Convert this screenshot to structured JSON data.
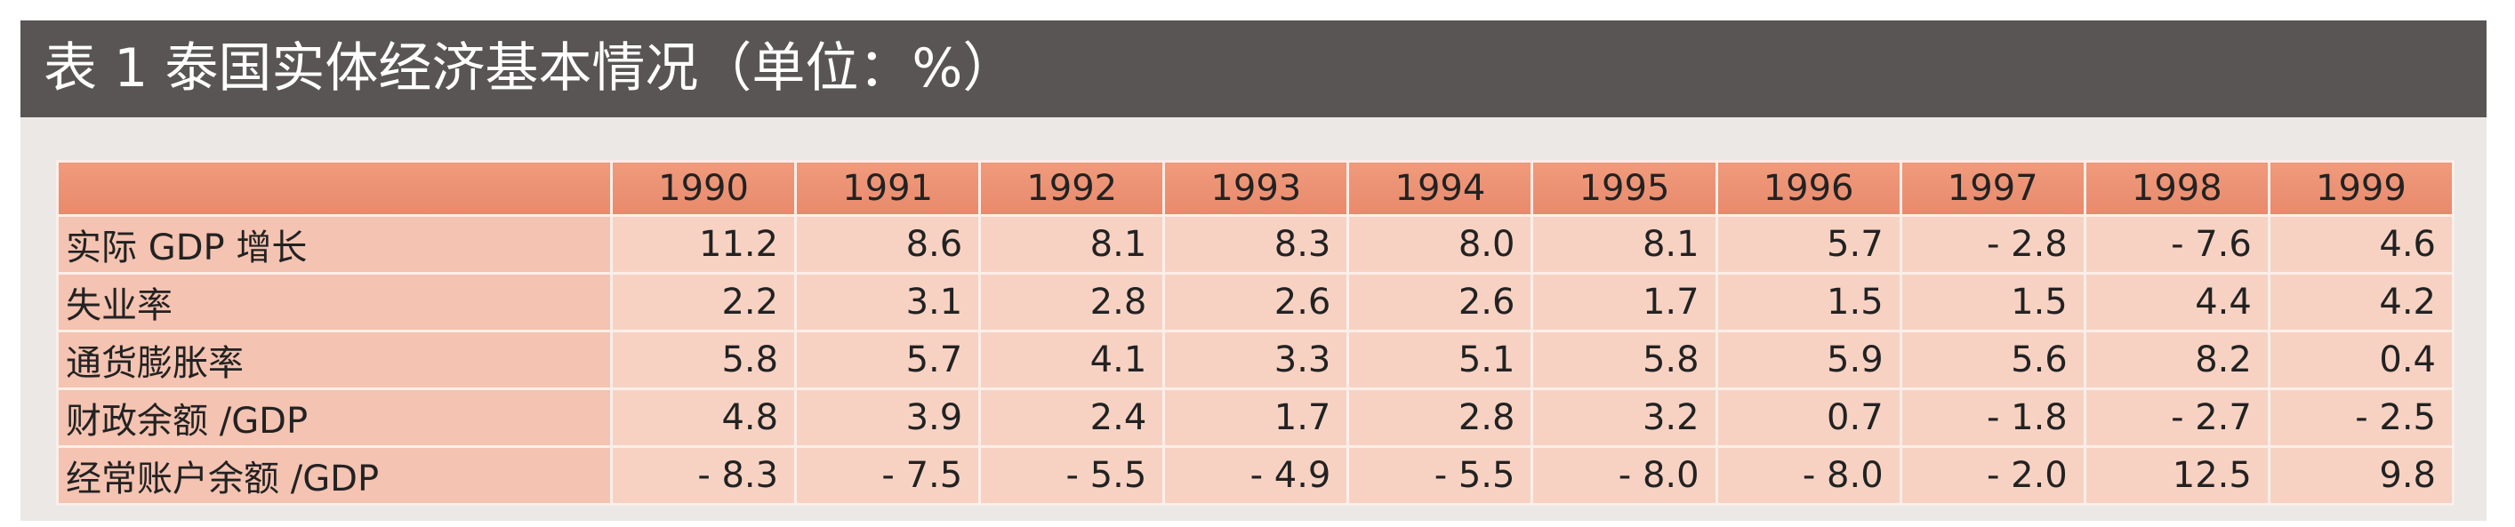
{
  "title": "表 1 泰国实体经济基本情况（单位：%）",
  "table": {
    "columns": [
      "1990",
      "1991",
      "1992",
      "1993",
      "1994",
      "1995",
      "1996",
      "1997",
      "1998",
      "1999"
    ],
    "rows": [
      {
        "label": "实际 GDP 增长",
        "values": [
          "11.2",
          "8.6",
          "8.1",
          "8.3",
          "8.0",
          "8.1",
          "5.7",
          "- 2.8",
          "- 7.6",
          "4.6"
        ]
      },
      {
        "label": "失业率",
        "values": [
          "2.2",
          "3.1",
          "2.8",
          "2.6",
          "2.6",
          "1.7",
          "1.5",
          "1.5",
          "4.4",
          "4.2"
        ]
      },
      {
        "label": "通货膨胀率",
        "values": [
          "5.8",
          "5.7",
          "4.1",
          "3.3",
          "5.1",
          "5.8",
          "5.9",
          "5.6",
          "8.2",
          "0.4"
        ]
      },
      {
        "label": "财政余额 /GDP",
        "values": [
          "4.8",
          "3.9",
          "2.4",
          "1.7",
          "2.8",
          "3.2",
          "0.7",
          "- 1.8",
          "- 2.7",
          "- 2.5"
        ]
      },
      {
        "label": "经常账户余额 /GDP",
        "values": [
          "- 8.3",
          "- 7.5",
          "- 5.5",
          "- 4.9",
          "- 5.5",
          "- 8.0",
          "- 8.0",
          "- 2.0",
          "12.5",
          "9.8"
        ]
      }
    ]
  }
}
